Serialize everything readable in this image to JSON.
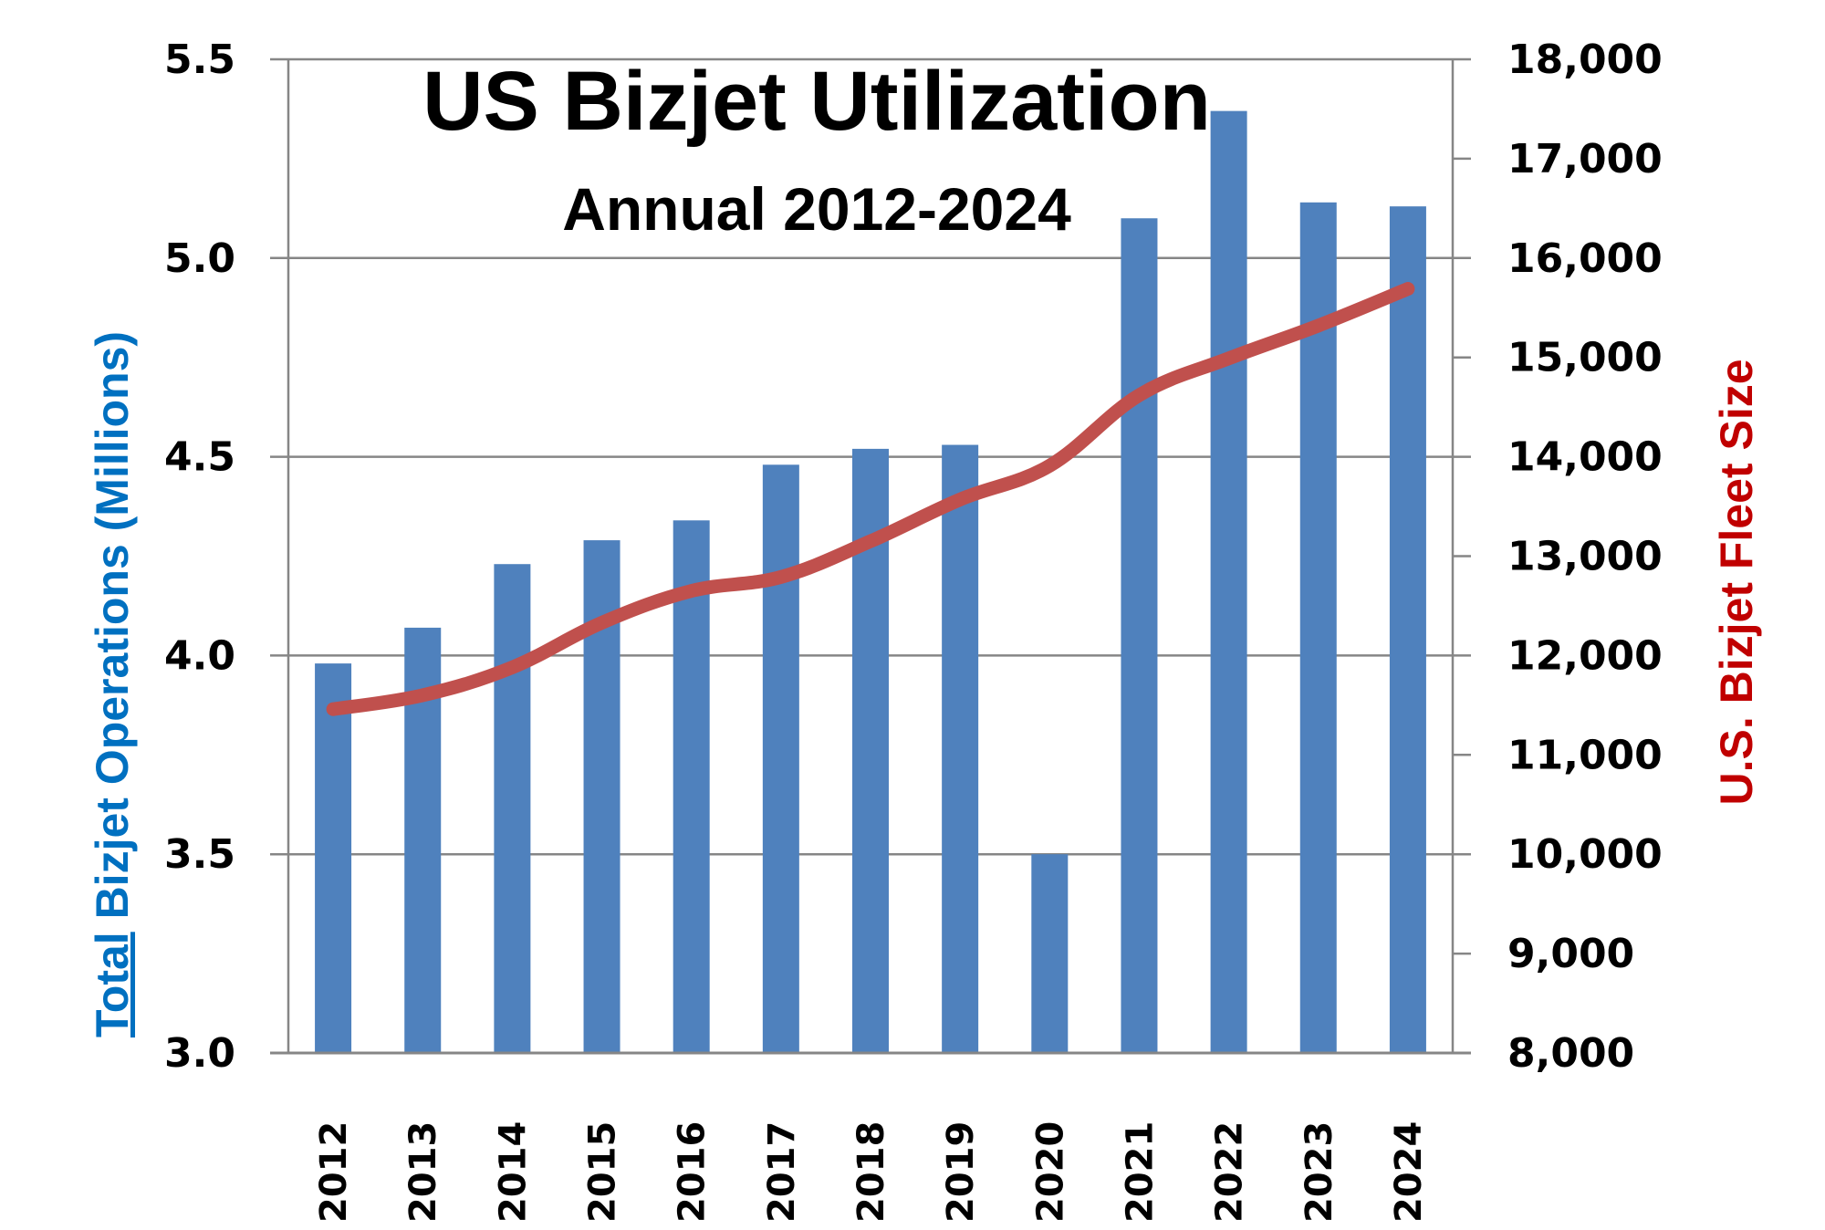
{
  "chart_data": {
    "type": "bar",
    "combo": "bar+line",
    "title": "US Bizjet Utilization",
    "subtitle": "Annual 2012-2024",
    "categories": [
      "2012",
      "2013",
      "2014",
      "2015",
      "2016",
      "2017",
      "2018",
      "2019",
      "2020",
      "2021",
      "2022",
      "2023",
      "2024"
    ],
    "series": [
      {
        "name": "Total Bizjet Operations (Millions)",
        "type": "bar",
        "axis": "left",
        "color": "#4f81bd",
        "values": [
          3.98,
          4.07,
          4.23,
          4.29,
          4.34,
          4.48,
          4.52,
          4.53,
          3.5,
          5.1,
          5.37,
          5.14,
          5.13
        ]
      },
      {
        "name": "U.S. Bizjet Fleet Size",
        "type": "line",
        "axis": "right",
        "color": "#c0504d",
        "values": [
          11460,
          11600,
          11880,
          12330,
          12650,
          12790,
          13150,
          13570,
          13910,
          14620,
          14990,
          15320,
          15690
        ]
      }
    ],
    "y_left": {
      "label_underlined": "Total",
      "label_rest": " Bizjet Operations (Millions)",
      "color": "#0070c0",
      "range": [
        3.0,
        5.5
      ],
      "ticks": [
        "3.0",
        "3.5",
        "4.0",
        "4.5",
        "5.0",
        "5.5"
      ],
      "tick_values": [
        3.0,
        3.5,
        4.0,
        4.5,
        5.0,
        5.5
      ]
    },
    "y_right": {
      "label": "U.S. Bizjet Fleet Size",
      "color": "#c00000",
      "range": [
        8000,
        18000
      ],
      "ticks": [
        "8,000",
        "9,000",
        "10,000",
        "11,000",
        "12,000",
        "13,000",
        "14,000",
        "15,000",
        "16,000",
        "17,000",
        "18,000"
      ],
      "tick_values": [
        8000,
        9000,
        10000,
        11000,
        12000,
        13000,
        14000,
        15000,
        16000,
        17000,
        18000
      ]
    },
    "xlabel": "",
    "grid": true,
    "legend": "none"
  }
}
